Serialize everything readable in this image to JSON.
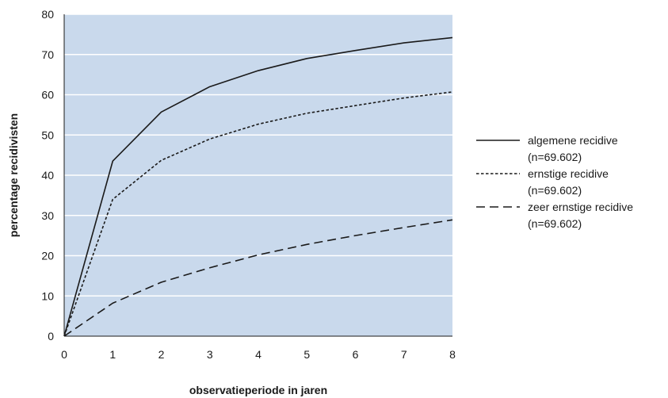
{
  "chart_data": {
    "type": "line",
    "xlabel": "observatieperiode in jaren",
    "ylabel": "percentage recidivisten",
    "x": [
      0,
      1,
      2,
      3,
      4,
      5,
      6,
      7,
      8
    ],
    "xlim": [
      0,
      8
    ],
    "ylim": [
      0,
      80
    ],
    "xticks": [
      0,
      1,
      2,
      3,
      4,
      5,
      6,
      7,
      8
    ],
    "yticks": [
      0,
      10,
      20,
      30,
      40,
      50,
      60,
      70,
      80
    ],
    "grid": "horizontal",
    "legend_position": "right",
    "background_color": "#c9d9ec",
    "line_color": "#1a1a1a",
    "series": [
      {
        "name": "algemene recidive",
        "sample": "(n=69.602)",
        "dash": "solid",
        "values": [
          0,
          43.5,
          55.7,
          62,
          66,
          69,
          71,
          72.9,
          74.2
        ]
      },
      {
        "name": "ernstige recidive",
        "sample": "(n=69.602)",
        "dash": "dotted",
        "values": [
          0,
          34,
          43.7,
          49,
          52.7,
          55.4,
          57.3,
          59.2,
          60.7
        ]
      },
      {
        "name": "zeer ernstige recidive",
        "sample": "(n=69.602)",
        "dash": "dashed",
        "values": [
          0,
          8.2,
          13.4,
          17,
          20.2,
          22.8,
          25,
          27,
          28.9
        ]
      }
    ]
  }
}
